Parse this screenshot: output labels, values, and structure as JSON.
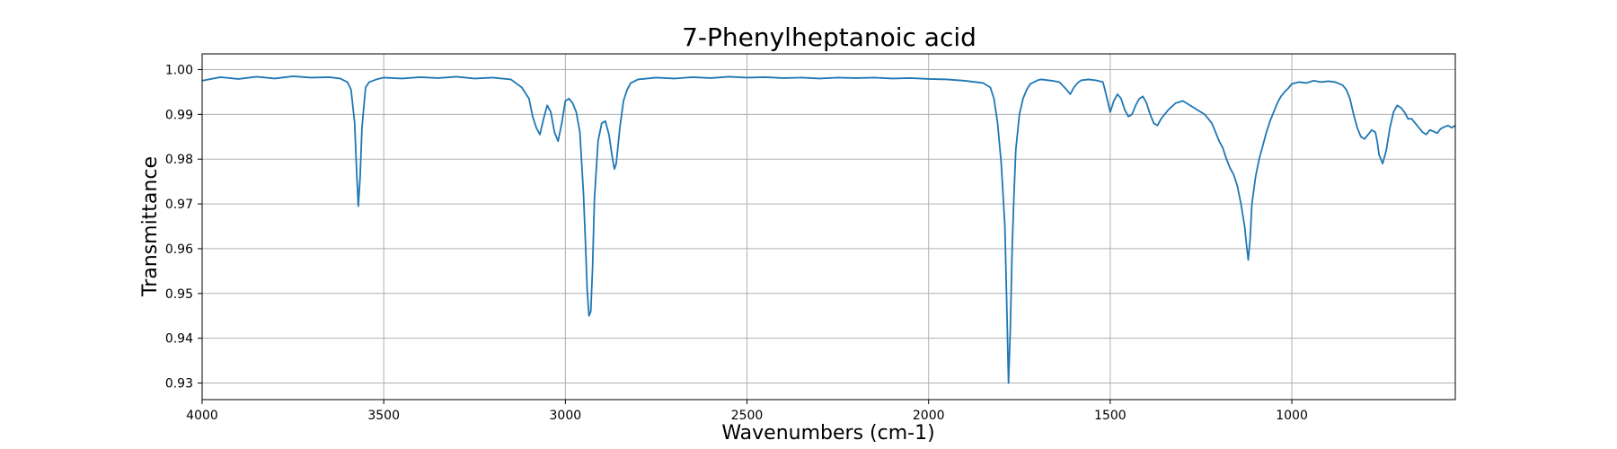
{
  "chart_data": {
    "type": "line",
    "title": "7-Phenylheptanoic acid",
    "xlabel": "Wavenumbers (cm-1)",
    "ylabel": "Transmittance",
    "xlim": [
      4000,
      550
    ],
    "ylim": [
      0.9263,
      1.0035
    ],
    "grid": true,
    "x_ticks": [
      4000,
      3500,
      3000,
      2500,
      2000,
      1500,
      1000
    ],
    "x_tick_labels": [
      "4000",
      "3500",
      "3000",
      "2500",
      "2000",
      "1500",
      "1000"
    ],
    "y_ticks": [
      0.93,
      0.94,
      0.95,
      0.96,
      0.97,
      0.98,
      0.99,
      1.0
    ],
    "y_tick_labels": [
      "0.93",
      "0.94",
      "0.95",
      "0.96",
      "0.97",
      "0.98",
      "0.99",
      "1.00"
    ],
    "series": [
      {
        "color": "#1f77b4",
        "x": [
          4000,
          3950,
          3900,
          3850,
          3800,
          3750,
          3700,
          3650,
          3620,
          3600,
          3590,
          3580,
          3575,
          3570,
          3565,
          3560,
          3550,
          3540,
          3520,
          3500,
          3450,
          3400,
          3350,
          3300,
          3250,
          3200,
          3150,
          3120,
          3100,
          3090,
          3080,
          3070,
          3060,
          3050,
          3040,
          3030,
          3020,
          3010,
          3000,
          2990,
          2980,
          2970,
          2960,
          2950,
          2945,
          2940,
          2935,
          2930,
          2925,
          2920,
          2910,
          2900,
          2890,
          2880,
          2870,
          2865,
          2860,
          2850,
          2840,
          2830,
          2820,
          2800,
          2750,
          2700,
          2650,
          2600,
          2550,
          2500,
          2450,
          2400,
          2350,
          2300,
          2250,
          2200,
          2150,
          2100,
          2050,
          2000,
          1950,
          1900,
          1850,
          1830,
          1820,
          1810,
          1800,
          1790,
          1785,
          1780,
          1775,
          1770,
          1765,
          1760,
          1750,
          1740,
          1730,
          1720,
          1710,
          1700,
          1690,
          1680,
          1670,
          1660,
          1640,
          1620,
          1610,
          1600,
          1590,
          1580,
          1560,
          1540,
          1520,
          1510,
          1500,
          1490,
          1480,
          1470,
          1460,
          1450,
          1440,
          1430,
          1420,
          1410,
          1400,
          1390,
          1380,
          1370,
          1360,
          1350,
          1340,
          1320,
          1300,
          1280,
          1260,
          1240,
          1230,
          1220,
          1210,
          1200,
          1190,
          1180,
          1170,
          1160,
          1150,
          1140,
          1130,
          1125,
          1120,
          1115,
          1110,
          1100,
          1090,
          1080,
          1070,
          1060,
          1050,
          1040,
          1030,
          1020,
          1010,
          1000,
          980,
          960,
          940,
          920,
          900,
          880,
          860,
          850,
          840,
          830,
          820,
          810,
          800,
          790,
          780,
          770,
          765,
          760,
          750,
          740,
          730,
          720,
          710,
          700,
          690,
          680,
          670,
          660,
          650,
          640,
          630,
          620,
          610,
          600,
          590,
          580,
          570,
          560,
          550
        ],
        "y": [
          0.9975,
          0.9983,
          0.9979,
          0.9984,
          0.998,
          0.9985,
          0.9982,
          0.9983,
          0.998,
          0.9972,
          0.9955,
          0.988,
          0.978,
          0.9695,
          0.976,
          0.987,
          0.996,
          0.9972,
          0.9978,
          0.9982,
          0.998,
          0.9983,
          0.9981,
          0.9984,
          0.998,
          0.9982,
          0.9978,
          0.996,
          0.9935,
          0.9895,
          0.987,
          0.9855,
          0.989,
          0.992,
          0.9905,
          0.986,
          0.984,
          0.988,
          0.993,
          0.9935,
          0.9925,
          0.9905,
          0.986,
          0.972,
          0.962,
          0.951,
          0.945,
          0.946,
          0.956,
          0.971,
          0.984,
          0.988,
          0.9885,
          0.9855,
          0.98,
          0.9778,
          0.979,
          0.987,
          0.993,
          0.9955,
          0.997,
          0.9978,
          0.9982,
          0.998,
          0.9983,
          0.9981,
          0.9984,
          0.9982,
          0.9983,
          0.9981,
          0.9982,
          0.998,
          0.9982,
          0.9981,
          0.9982,
          0.998,
          0.9981,
          0.9979,
          0.9978,
          0.9975,
          0.997,
          0.996,
          0.9935,
          0.988,
          0.979,
          0.965,
          0.948,
          0.93,
          0.942,
          0.96,
          0.972,
          0.982,
          0.99,
          0.9935,
          0.9955,
          0.9968,
          0.9972,
          0.9976,
          0.9978,
          0.9977,
          0.9976,
          0.9975,
          0.9972,
          0.9955,
          0.9945,
          0.996,
          0.997,
          0.9976,
          0.9978,
          0.9976,
          0.9972,
          0.994,
          0.9905,
          0.993,
          0.9945,
          0.9935,
          0.991,
          0.9895,
          0.99,
          0.992,
          0.9935,
          0.994,
          0.9925,
          0.99,
          0.988,
          0.9875,
          0.989,
          0.99,
          0.991,
          0.9925,
          0.993,
          0.992,
          0.991,
          0.99,
          0.989,
          0.988,
          0.986,
          0.984,
          0.9825,
          0.98,
          0.978,
          0.9765,
          0.974,
          0.97,
          0.965,
          0.961,
          0.9575,
          0.962,
          0.97,
          0.976,
          0.98,
          0.983,
          0.986,
          0.9885,
          0.9905,
          0.9925,
          0.994,
          0.995,
          0.9958,
          0.9968,
          0.9972,
          0.997,
          0.9975,
          0.9972,
          0.9974,
          0.9972,
          0.9965,
          0.9955,
          0.9935,
          0.99,
          0.987,
          0.985,
          0.9845,
          0.9855,
          0.9865,
          0.986,
          0.984,
          0.981,
          0.979,
          0.982,
          0.987,
          0.9905,
          0.992,
          0.9915,
          0.9905,
          0.989,
          0.989,
          0.988,
          0.987,
          0.986,
          0.9855,
          0.9865,
          0.9862,
          0.9858,
          0.9868,
          0.9872,
          0.9875,
          0.987,
          0.9875
        ]
      }
    ]
  }
}
